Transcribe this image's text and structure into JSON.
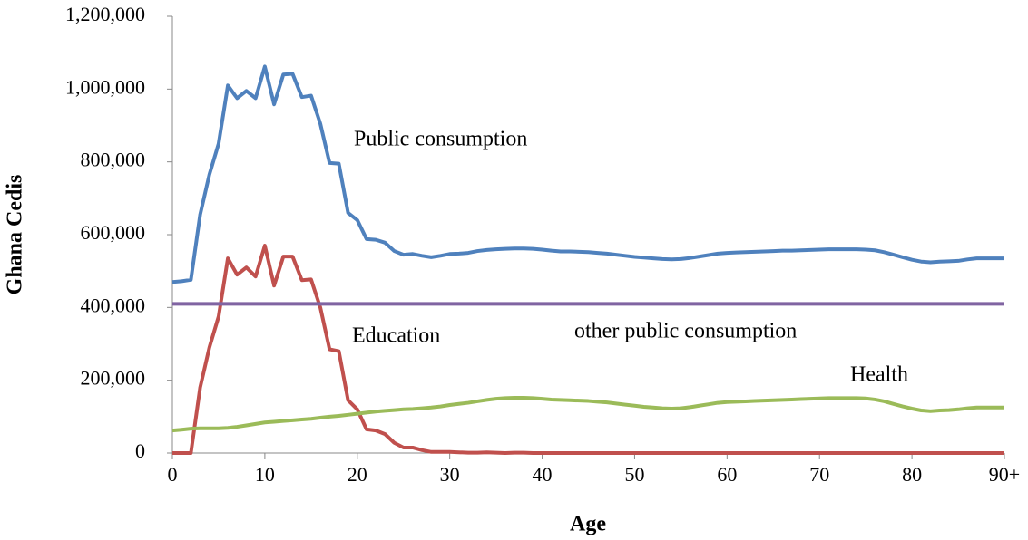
{
  "chart_data": {
    "type": "line",
    "xlabel": "Age",
    "ylabel": "Ghana Cedis",
    "annotations": [
      "Public consumption",
      "Education",
      "other public consumption",
      "Health"
    ],
    "x": [
      0,
      1,
      2,
      3,
      4,
      5,
      6,
      7,
      8,
      9,
      10,
      11,
      12,
      13,
      14,
      15,
      16,
      17,
      18,
      19,
      20,
      21,
      22,
      23,
      24,
      25,
      26,
      27,
      28,
      29,
      30,
      31,
      32,
      33,
      34,
      35,
      36,
      37,
      38,
      39,
      40,
      41,
      42,
      43,
      44,
      45,
      46,
      47,
      48,
      49,
      50,
      51,
      52,
      53,
      54,
      55,
      56,
      57,
      58,
      59,
      60,
      61,
      62,
      63,
      64,
      65,
      66,
      67,
      68,
      69,
      70,
      71,
      72,
      73,
      74,
      75,
      76,
      77,
      78,
      79,
      80,
      81,
      82,
      83,
      84,
      85,
      86,
      87,
      88,
      89,
      90
    ],
    "series": [
      {
        "name": "Public consumption",
        "color": "#4f81bd",
        "values": [
          470000,
          472000,
          476000,
          655000,
          765000,
          850000,
          1010000,
          975000,
          995000,
          975000,
          1062000,
          958000,
          1040000,
          1042000,
          978000,
          982000,
          905000,
          797000,
          795000,
          660000,
          640000,
          588000,
          586000,
          578000,
          555000,
          545000,
          547000,
          542000,
          538000,
          542000,
          547000,
          548000,
          550000,
          555000,
          558000,
          560000,
          561000,
          562000,
          562000,
          561000,
          559000,
          556000,
          554000,
          554000,
          553000,
          552000,
          550000,
          548000,
          545000,
          542000,
          539000,
          537000,
          535000,
          533000,
          532000,
          533000,
          536000,
          540000,
          544000,
          548000,
          550000,
          551000,
          552000,
          553000,
          554000,
          555000,
          556000,
          556000,
          557000,
          558000,
          559000,
          560000,
          560000,
          560000,
          560000,
          559000,
          557000,
          552000,
          545000,
          538000,
          531000,
          526000,
          524000,
          526000,
          527000,
          528000,
          532000,
          535000,
          535000,
          535000,
          535000
        ]
      },
      {
        "name": "Education",
        "color": "#c0504d",
        "values": [
          0,
          0,
          0,
          180000,
          290000,
          375000,
          535000,
          490000,
          510000,
          485000,
          570000,
          460000,
          540000,
          540000,
          475000,
          477000,
          400000,
          285000,
          280000,
          145000,
          120000,
          65000,
          62000,
          52000,
          28000,
          15000,
          15000,
          8000,
          3000,
          3000,
          3000,
          2000,
          1000,
          1000,
          2000,
          1000,
          0,
          1000,
          1000,
          0,
          0,
          0,
          0,
          0,
          0,
          0,
          0,
          0,
          0,
          0,
          0,
          0,
          0,
          0,
          0,
          0,
          0,
          0,
          0,
          0,
          0,
          0,
          0,
          0,
          0,
          0,
          0,
          0,
          0,
          0,
          0,
          0,
          0,
          0,
          0,
          0,
          0,
          0,
          0,
          0,
          0,
          0,
          0,
          0,
          0,
          0,
          0,
          0,
          0,
          0,
          0
        ]
      },
      {
        "name": "other public consumption",
        "color": "#8064a2",
        "values": [
          410000,
          410000,
          410000,
          410000,
          410000,
          410000,
          410000,
          410000,
          410000,
          410000,
          410000,
          410000,
          410000,
          410000,
          410000,
          410000,
          410000,
          410000,
          410000,
          410000,
          410000,
          410000,
          410000,
          410000,
          410000,
          410000,
          410000,
          410000,
          410000,
          410000,
          410000,
          410000,
          410000,
          410000,
          410000,
          410000,
          410000,
          410000,
          410000,
          410000,
          410000,
          410000,
          410000,
          410000,
          410000,
          410000,
          410000,
          410000,
          410000,
          410000,
          410000,
          410000,
          410000,
          410000,
          410000,
          410000,
          410000,
          410000,
          410000,
          410000,
          410000,
          410000,
          410000,
          410000,
          410000,
          410000,
          410000,
          410000,
          410000,
          410000,
          410000,
          410000,
          410000,
          410000,
          410000,
          410000,
          410000,
          410000,
          410000,
          410000,
          410000,
          410000,
          410000,
          410000,
          410000,
          410000,
          410000,
          410000,
          410000,
          410000,
          410000
        ]
      },
      {
        "name": "Health",
        "color": "#9bbb59",
        "values": [
          62000,
          64000,
          67000,
          68000,
          68000,
          68000,
          69000,
          72000,
          76000,
          80000,
          84000,
          86000,
          88000,
          90000,
          92000,
          94000,
          97000,
          100000,
          102000,
          105000,
          108000,
          111000,
          114000,
          116000,
          118000,
          120000,
          121000,
          123000,
          125000,
          128000,
          132000,
          135000,
          138000,
          142000,
          146000,
          149000,
          151000,
          152000,
          152000,
          151000,
          149000,
          147000,
          146000,
          145000,
          144000,
          143000,
          141000,
          139000,
          136000,
          133000,
          130000,
          127000,
          125000,
          123000,
          122000,
          123000,
          126000,
          130000,
          134000,
          138000,
          140000,
          141000,
          142000,
          143000,
          144000,
          145000,
          146000,
          147000,
          148000,
          149000,
          150000,
          151000,
          151000,
          151000,
          151000,
          150000,
          147000,
          142000,
          135000,
          128000,
          122000,
          117000,
          115000,
          117000,
          118000,
          120000,
          123000,
          125000,
          125000,
          125000,
          125000
        ]
      }
    ],
    "xlim": [
      0,
      90
    ],
    "xticks": [
      0,
      10,
      20,
      30,
      40,
      50,
      60,
      70,
      80,
      {
        "value": 90,
        "label": "90+"
      }
    ],
    "ylim": [
      0,
      1200000
    ],
    "yticks": [
      0,
      {
        "value": 200000,
        "label": "200,000"
      },
      {
        "value": 400000,
        "label": "400,000"
      },
      {
        "value": 600000,
        "label": "600,000"
      },
      {
        "value": 800000,
        "label": "800,000"
      },
      {
        "value": 1000000,
        "label": "1,000,000"
      },
      {
        "value": 1200000,
        "label": "1,200,000"
      }
    ],
    "grid": false
  }
}
